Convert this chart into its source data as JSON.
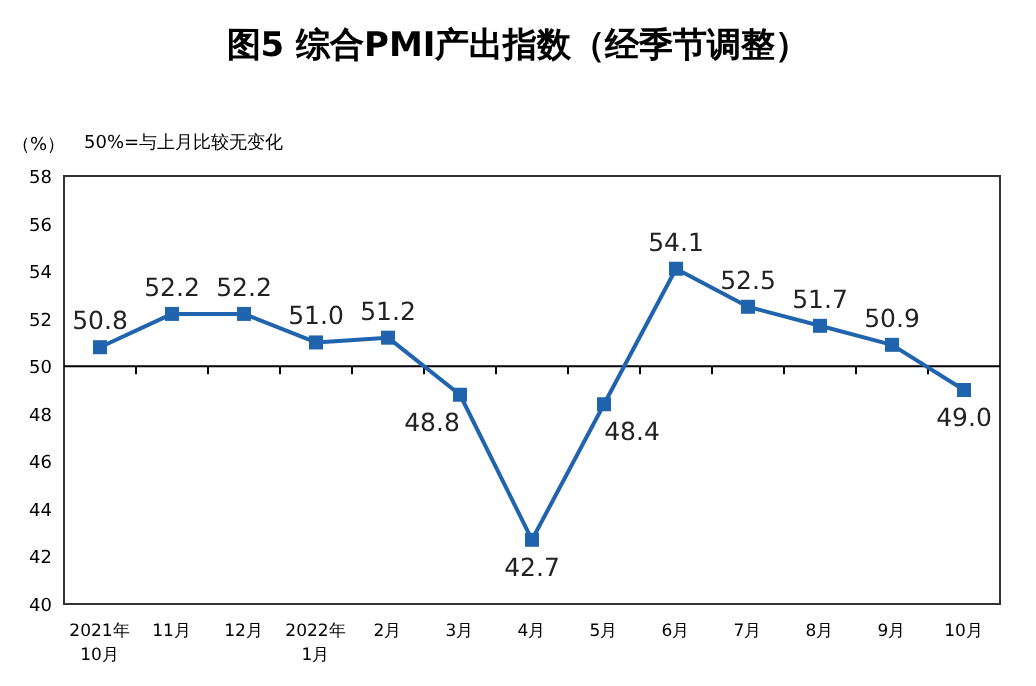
{
  "chart_data": {
    "type": "line",
    "title": "图5 综合PMI产出指数（经季节调整）",
    "ylabel": "（%）",
    "annotations": [
      "50%=与上月比较无变化"
    ],
    "categories": [
      "2021年\n10月",
      "11月",
      "12月",
      "2022年\n1月",
      "2月",
      "3月",
      "4月",
      "5月",
      "6月",
      "7月",
      "8月",
      "9月",
      "10月"
    ],
    "series": [
      {
        "color": "#1f64ad",
        "values": [
          50.8,
          52.2,
          52.2,
          51.0,
          51.2,
          48.8,
          42.7,
          48.4,
          54.1,
          52.5,
          51.7,
          50.9,
          49.0
        ],
        "value_labels": [
          "50.8",
          "52.2",
          "52.2",
          "51.0",
          "51.2",
          "48.8",
          "42.7",
          "48.4",
          "54.1",
          "52.5",
          "51.7",
          "50.9",
          "49.0"
        ]
      }
    ],
    "ylim": [
      40,
      58
    ],
    "yticks": [
      40,
      42,
      44,
      46,
      48,
      50,
      52,
      54,
      56,
      58
    ],
    "ref_lines": [
      {
        "axis": "y",
        "value": 50,
        "color": "#000000"
      }
    ],
    "marker": "square",
    "line_style": "solid",
    "grid": false
  }
}
